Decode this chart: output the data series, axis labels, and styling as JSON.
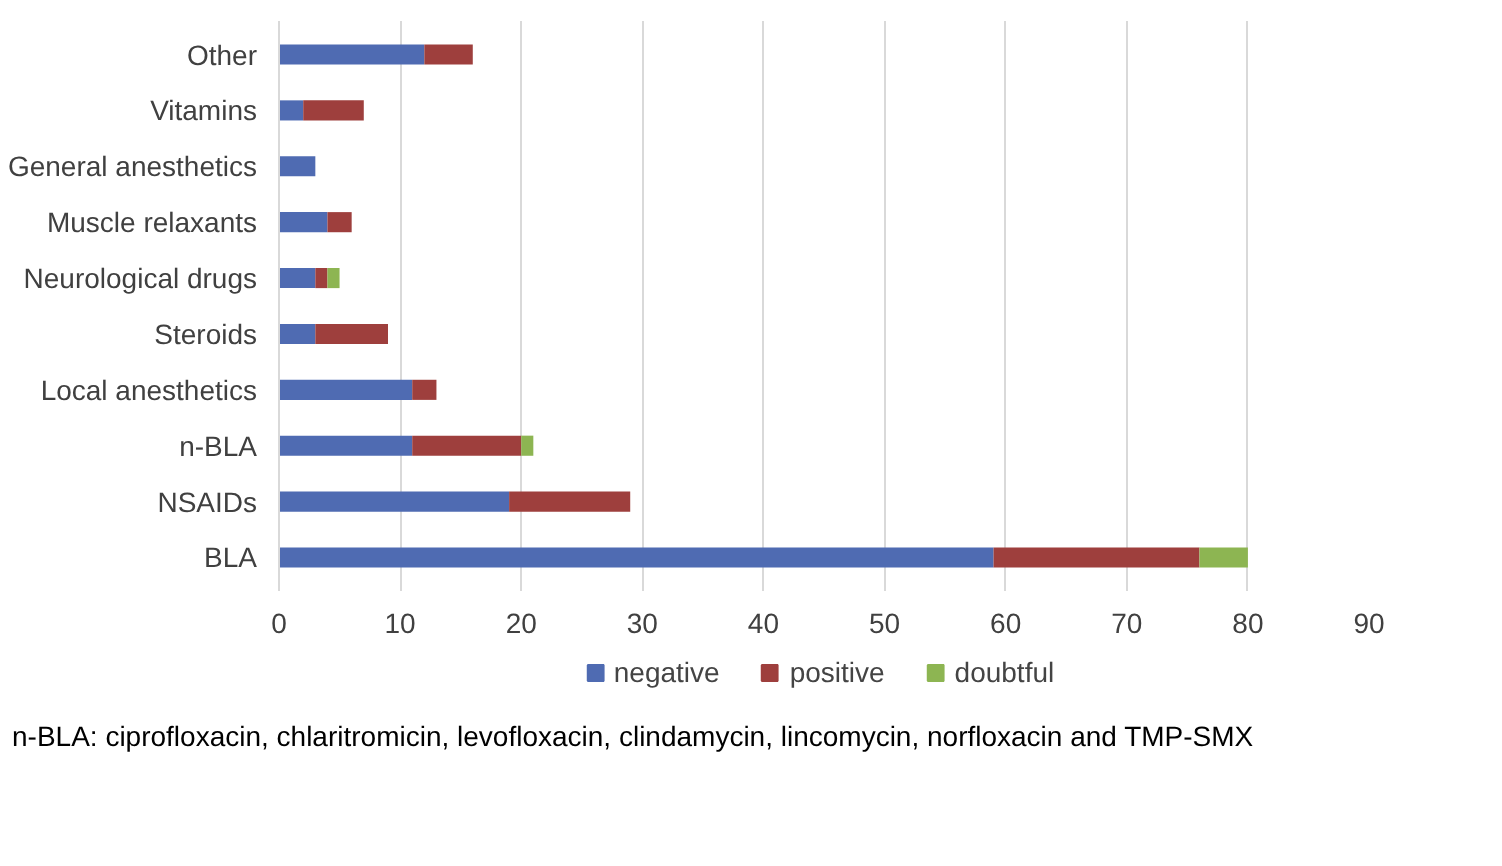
{
  "chart_data": {
    "type": "bar",
    "orientation": "horizontal",
    "stacked": true,
    "categories": [
      "Other",
      "Vitamins",
      "General anesthetics",
      "Muscle relaxants",
      "Neurological drugs",
      "Steroids",
      "Local anesthetics",
      "n-BLA",
      "NSAIDs",
      "BLA"
    ],
    "series": [
      {
        "name": "negative",
        "color": "#4f6bb2",
        "values": [
          12,
          2,
          3,
          4,
          3,
          3,
          11,
          11,
          19,
          59
        ]
      },
      {
        "name": "positive",
        "color": "#9e3f3d",
        "values": [
          4,
          5,
          0,
          2,
          1,
          6,
          2,
          9,
          10,
          17
        ]
      },
      {
        "name": "doubtful",
        "color": "#8db552",
        "values": [
          0,
          0,
          0,
          0,
          1,
          0,
          0,
          1,
          0,
          4
        ]
      }
    ],
    "xlim": [
      0,
      90
    ],
    "xticks": [
      0,
      10,
      20,
      30,
      40,
      50,
      60,
      70,
      80,
      90
    ],
    "grid": "x",
    "legend": "bottom",
    "annotations": [
      "n-BLA: ciprofloxacin, chlaritromicin, levofloxacin, clindamycin, lincomycin, norfloxacin and TMP-SMX"
    ]
  }
}
